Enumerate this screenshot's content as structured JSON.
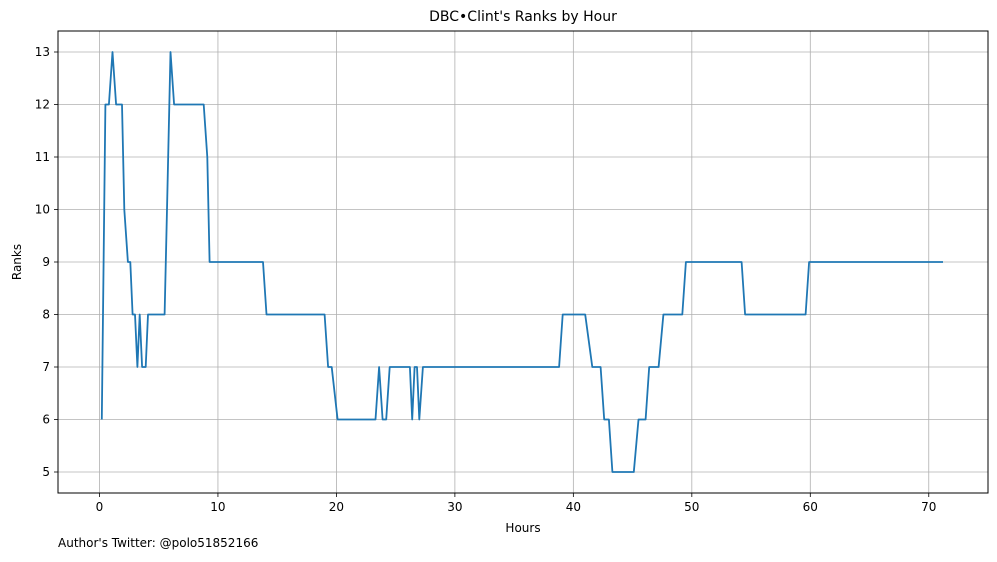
{
  "footnote": "Author's Twitter: @polo51852166",
  "chart_data": {
    "type": "line",
    "title": "DBC•Clint's Ranks by Hour",
    "xlabel": "Hours",
    "ylabel": "Ranks",
    "xlim": [
      -3.5,
      75
    ],
    "ylim": [
      4.6,
      13.4
    ],
    "xticks": [
      0,
      10,
      20,
      30,
      40,
      50,
      60,
      70
    ],
    "yticks": [
      5,
      6,
      7,
      8,
      9,
      10,
      11,
      12,
      13
    ],
    "grid": true,
    "line_color": "#1f77b4",
    "series": [
      {
        "x": [
          0.2,
          0.5,
          0.8,
          1.1,
          1.4,
          1.7,
          1.9,
          2.1,
          2.4,
          2.6,
          2.8,
          3.0,
          3.2,
          3.4,
          3.6,
          3.9,
          4.1,
          4.3,
          4.6,
          5.5,
          5.7,
          6.0,
          6.3,
          6.6,
          7.5,
          8.5,
          8.8,
          9.1,
          9.3,
          9.6,
          10.5,
          12.0,
          13.8,
          14.1,
          15.0,
          17.0,
          19.0,
          19.3,
          19.6,
          20.1,
          20.4,
          22.0,
          23.3,
          23.6,
          23.9,
          24.2,
          24.5,
          25.5,
          25.9,
          26.2,
          26.4,
          26.6,
          26.8,
          27.0,
          27.3,
          30.0,
          35.0,
          38.8,
          39.1,
          40.0,
          40.7,
          41.0,
          41.6,
          42.3,
          42.6,
          43.0,
          43.3,
          45.1,
          45.5,
          45.8,
          46.1,
          46.4,
          46.8,
          47.2,
          47.6,
          49.2,
          49.5,
          52.0,
          54.2,
          54.5,
          57.0,
          59.6,
          59.9,
          62.0,
          66.0,
          71.2
        ],
        "y": [
          6,
          12,
          12,
          13,
          12,
          12,
          12,
          10,
          9,
          9,
          8,
          8,
          7,
          8,
          7,
          7,
          8,
          8,
          8,
          8,
          10,
          13,
          12,
          12,
          12,
          12,
          12,
          11,
          9,
          9,
          9,
          9,
          9,
          8,
          8,
          8,
          8,
          7,
          7,
          6,
          6,
          6,
          6,
          7,
          6,
          6,
          7,
          7,
          7,
          7,
          6,
          7,
          7,
          6,
          7,
          7,
          7,
          7,
          8,
          8,
          8,
          8,
          7,
          7,
          6,
          6,
          5,
          5,
          6,
          6,
          6,
          7,
          7,
          7,
          8,
          8,
          9,
          9,
          9,
          8,
          8,
          8,
          9,
          9,
          9,
          9
        ]
      }
    ]
  }
}
